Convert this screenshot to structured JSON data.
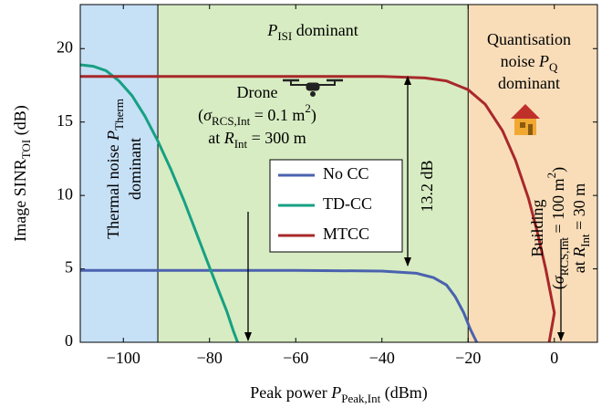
{
  "chart_data": {
    "type": "line",
    "xlabel": [
      {
        "text": "Peak power "
      },
      {
        "text": "P",
        "italic": true
      },
      {
        "text": "Peak,Int",
        "sub": true
      },
      {
        "text": " (dBm)"
      }
    ],
    "ylabel": [
      {
        "text": "Image SINR"
      },
      {
        "text": "TOI",
        "sub": true
      },
      {
        "text": " (dB)"
      }
    ],
    "xlim": [
      -110,
      10
    ],
    "ylim": [
      0,
      23
    ],
    "xticks": [
      {
        "value": -100,
        "label": "−100"
      },
      {
        "value": -80,
        "label": "−80"
      },
      {
        "value": -60,
        "label": "−60"
      },
      {
        "value": -40,
        "label": "−40"
      },
      {
        "value": -20,
        "label": "−20"
      },
      0
    ],
    "yticks": [
      0,
      5,
      10,
      15,
      20
    ],
    "legend": "center",
    "regions": [
      {
        "from": -110,
        "to": -92,
        "color": "#c6e0f6"
      },
      {
        "from": -92,
        "to": -20,
        "color": "#d7ecc2"
      },
      {
        "from": -20,
        "to": 10,
        "color": "#f9ddb9"
      }
    ],
    "series": [
      {
        "name": "No CC",
        "color": "#4a62ae",
        "x": [
          -110,
          -60,
          -40,
          -32,
          -28,
          -25,
          -23,
          -21,
          -19.5,
          -18
        ],
        "values": [
          4.9,
          4.9,
          4.85,
          4.7,
          4.4,
          3.9,
          3.1,
          2.0,
          0.9,
          0
        ]
      },
      {
        "name": "TD-CC",
        "color": "#17a083",
        "x": [
          -110,
          -107,
          -104,
          -101,
          -98,
          -95,
          -92,
          -89,
          -86,
          -83,
          -80,
          -78,
          -76,
          -74.5,
          -73.5
        ],
        "values": [
          18.9,
          18.8,
          18.5,
          17.8,
          16.8,
          15.4,
          13.7,
          11.8,
          9.7,
          7.4,
          5.1,
          3.6,
          2.1,
          0.8,
          0
        ]
      },
      {
        "name": "MTCC",
        "color": "#a8282a",
        "x": [
          -110,
          -40,
          -30,
          -25,
          -20,
          -16,
          -12,
          -9,
          -6,
          -4,
          -2,
          0,
          -1.2
        ],
        "values": [
          18.1,
          18.1,
          18.0,
          17.8,
          17.2,
          16.2,
          14.4,
          12.4,
          9.8,
          7.6,
          5.0,
          2.0,
          0
        ]
      }
    ],
    "annotations": [
      {
        "color": "#17a083",
        "lines": [
          [
            {
              "text": "P",
              "italic": true
            },
            {
              "text": "ISI",
              "sub": true
            },
            {
              "text": " dominant"
            }
          ]
        ]
      },
      {
        "color": "#4a7cba",
        "lines": [
          [
            {
              "text": "Thermal noise "
            },
            {
              "text": "P",
              "italic": true
            },
            {
              "text": "Therm",
              "sub": true
            }
          ],
          [
            {
              "text": "dominant"
            }
          ]
        ]
      },
      {
        "color": "#e89a2a",
        "lines": [
          [
            {
              "text": "Quantisation"
            }
          ],
          [
            {
              "text": "noise "
            },
            {
              "text": "P",
              "italic": true
            },
            {
              "text": "Q",
              "sub": true
            }
          ],
          [
            {
              "text": "dominant"
            }
          ]
        ]
      },
      {
        "color": "#000",
        "lines": [
          [
            {
              "text": "Drone"
            }
          ],
          [
            {
              "text": "("
            },
            {
              "text": "σ",
              "italic": true
            },
            {
              "text": "RCS,Int",
              "sub": true
            },
            {
              "text": " = 0.1 m"
            },
            {
              "text": "2",
              "sup": true
            },
            {
              "text": ")"
            }
          ],
          [
            {
              "text": "at "
            },
            {
              "text": "R",
              "italic": true
            },
            {
              "text": "Int",
              "sub": true
            },
            {
              "text": " = 300 m"
            }
          ]
        ]
      },
      {
        "color": "#000",
        "lines": [
          [
            {
              "text": "Building"
            }
          ],
          [
            {
              "text": "("
            },
            {
              "text": "σ",
              "italic": true
            },
            {
              "text": "RCS,Int",
              "sub": true
            },
            {
              "text": " = 100 m"
            },
            {
              "text": "2",
              "sup": true
            },
            {
              "text": ")"
            }
          ],
          [
            {
              "text": "at "
            },
            {
              "text": "R",
              "italic": true
            },
            {
              "text": "Int",
              "sub": true
            },
            {
              "text": " = 30 m"
            }
          ]
        ]
      },
      {
        "color": "#000",
        "lines": [
          [
            {
              "text": "13.2 dB"
            }
          ]
        ]
      }
    ]
  }
}
